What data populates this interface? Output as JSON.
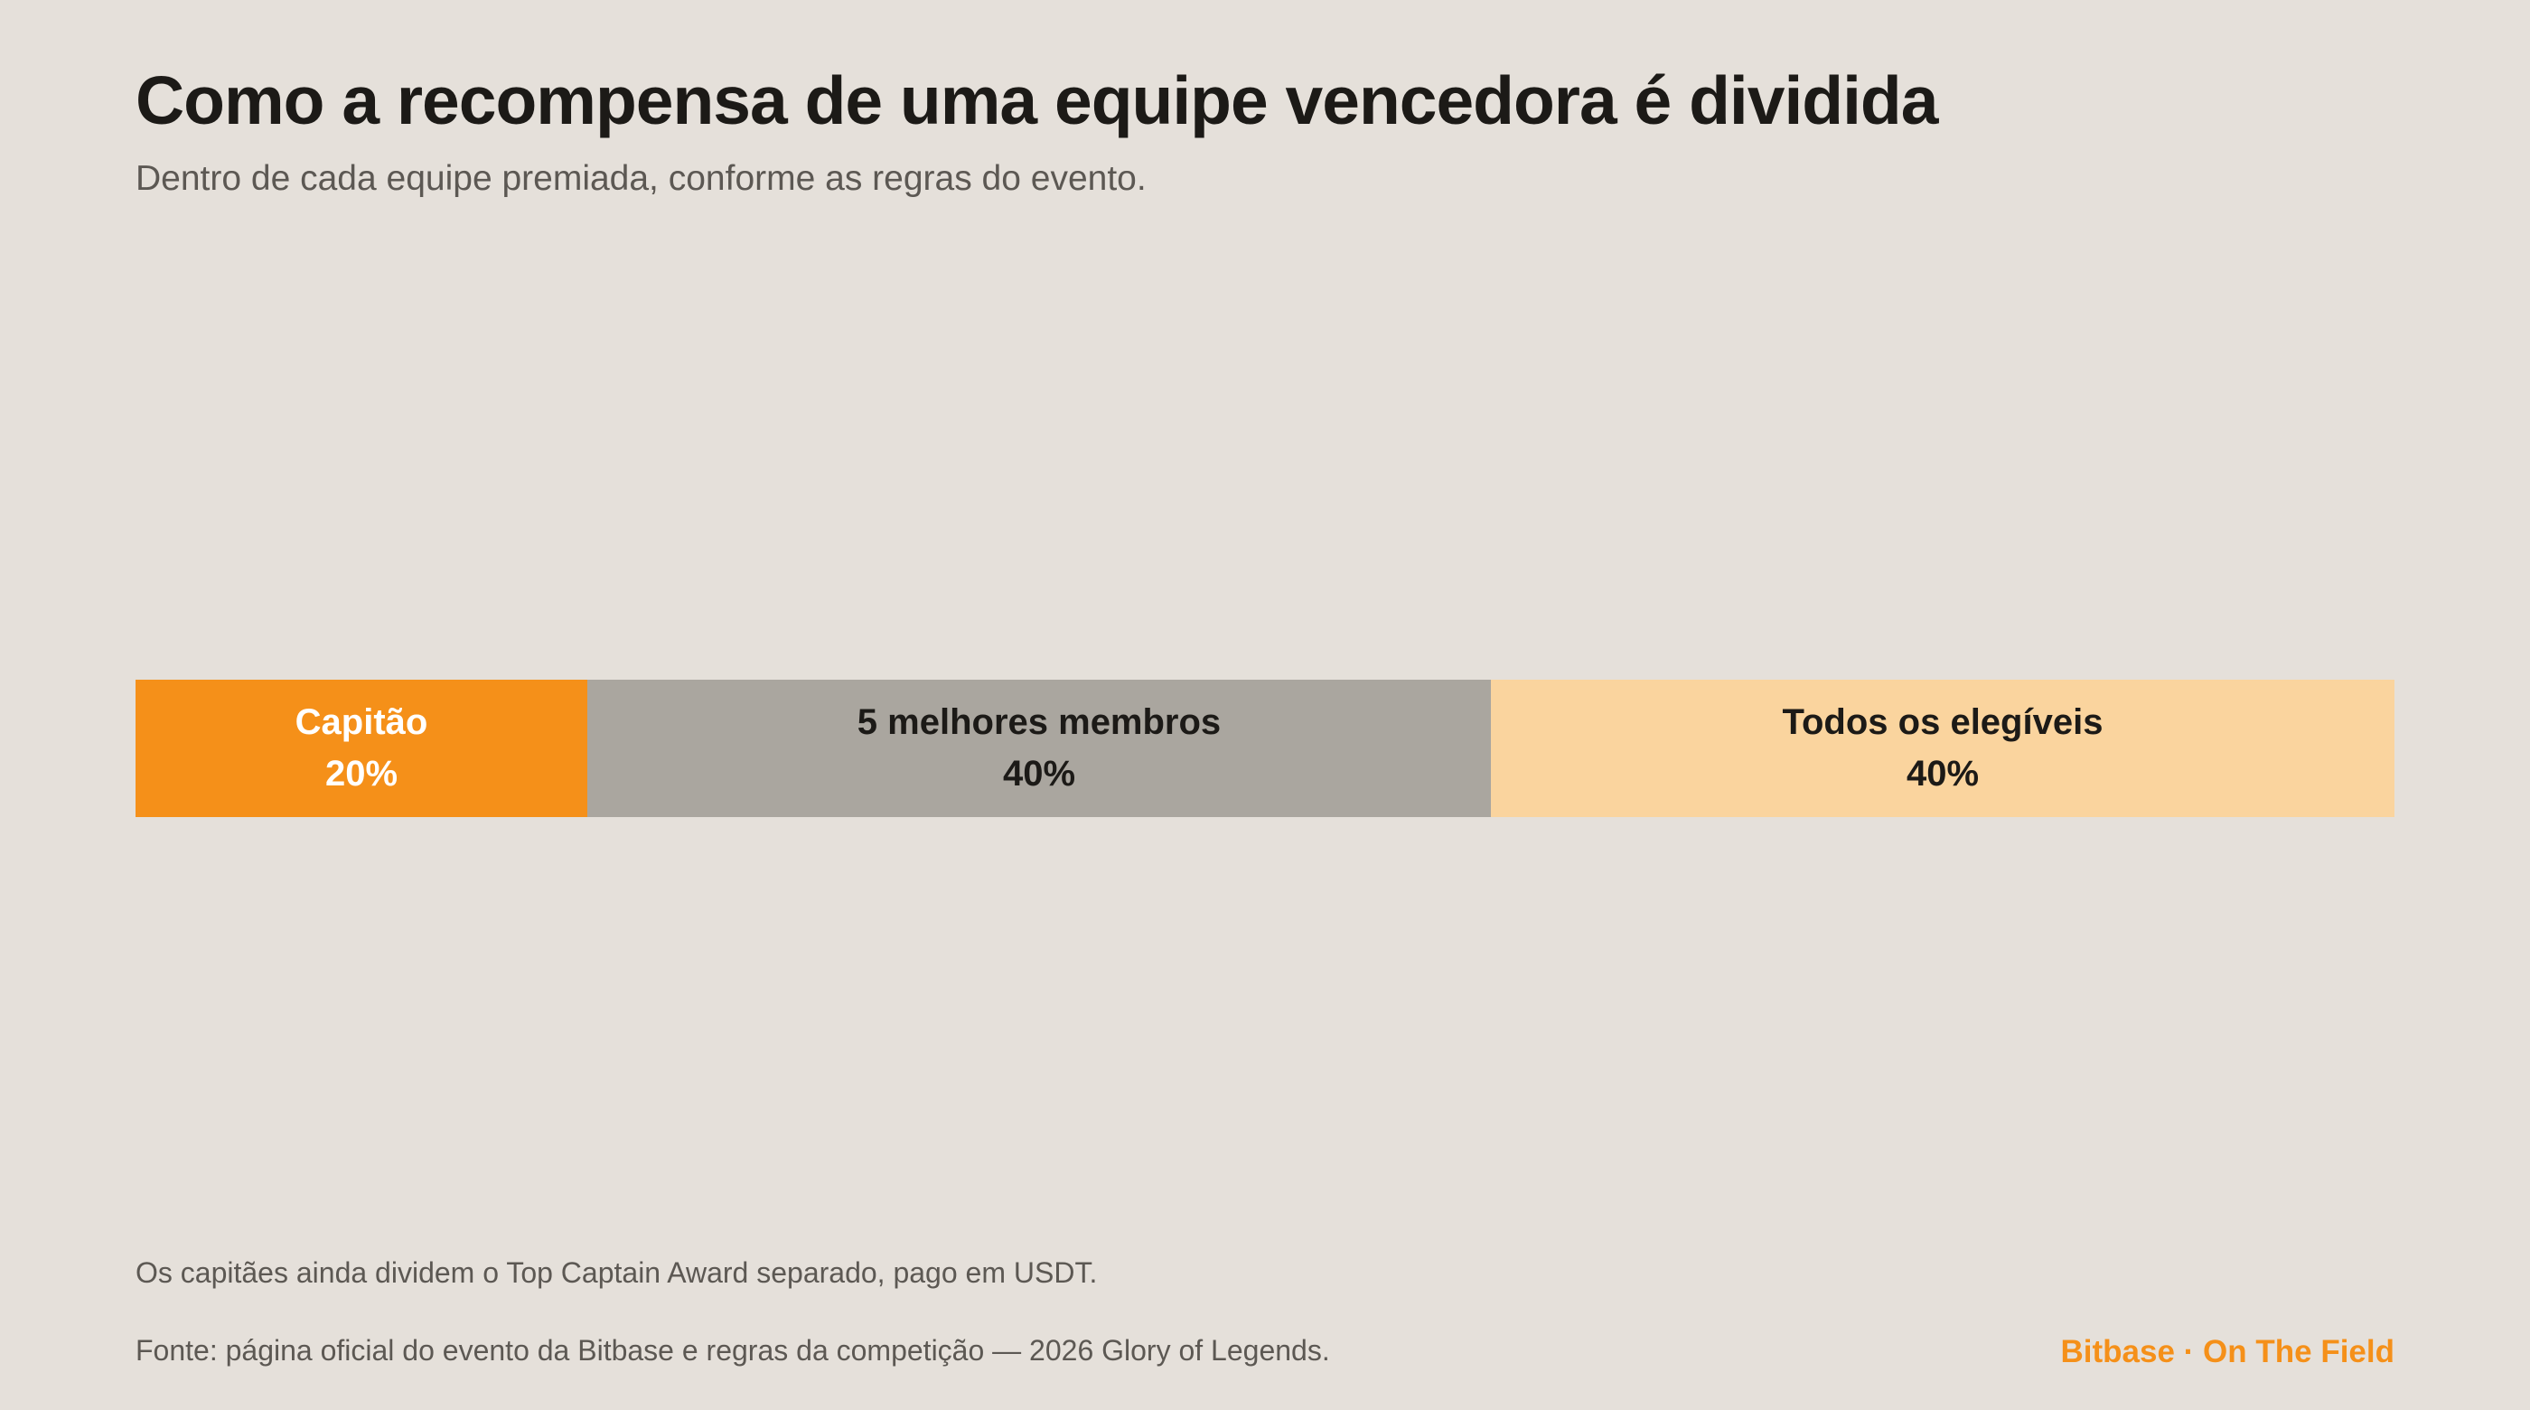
{
  "colors": {
    "background": "#e5e0da",
    "captain": "#f59019",
    "top_members": "#aaa69f",
    "all_eligible": "#fad49e",
    "brand": "#f59019"
  },
  "header": {
    "title": "Como a recompensa de uma equipe vencedora é dividida",
    "subtitle": "Dentro de cada equipe premiada, conforme as regras do evento."
  },
  "chart_data": {
    "type": "bar",
    "stacked": true,
    "orientation": "horizontal",
    "total": 100,
    "unit": "%",
    "segments": [
      {
        "name": "Capitão",
        "value": 20,
        "label": "20%",
        "color": "#f59019",
        "text_color": "#ffffff"
      },
      {
        "name": "5 melhores membros",
        "value": 40,
        "label": "40%",
        "color": "#aaa69f",
        "text_color": "#1c1a17"
      },
      {
        "name": "Todos os elegíveis",
        "value": 40,
        "label": "40%",
        "color": "#fad49e",
        "text_color": "#1c1a17"
      }
    ],
    "grid": false,
    "legend": "none"
  },
  "footer": {
    "note": "Os capitães ainda dividem o Top Captain Award separado, pago em USDT.",
    "source": "Fonte: página oficial do evento da Bitbase e regras da competição — 2026 Glory of Legends.",
    "brand": "Bitbase · On The Field"
  }
}
